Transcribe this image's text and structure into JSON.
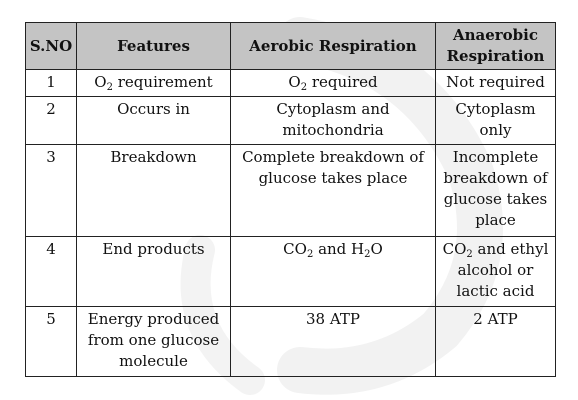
{
  "table": {
    "headers": [
      "S.NO",
      "Features",
      "Aerobic Respiration",
      "Anaerobic Respiration"
    ],
    "rows": [
      {
        "sno": "1",
        "feature": "O2 requirement",
        "aerobic": "O2 required",
        "anaerobic": "Not required"
      },
      {
        "sno": "2",
        "feature": "Occurs in",
        "aerobic": "Cytoplasm and mitochondria",
        "anaerobic": "Cytoplasm only"
      },
      {
        "sno": "3",
        "feature": "Breakdown",
        "aerobic": "Complete breakdown of glucose takes place",
        "anaerobic": "Incomplete breakdown of glucose takes place"
      },
      {
        "sno": "4",
        "feature": "End products",
        "aerobic": "CO2 and H2O",
        "anaerobic": "CO2 and ethyl alcohol or lactic acid"
      },
      {
        "sno": "5",
        "feature": "Energy produced from one glucose molecule",
        "aerobic": "38 ATP",
        "anaerobic": "2 ATP"
      }
    ]
  }
}
